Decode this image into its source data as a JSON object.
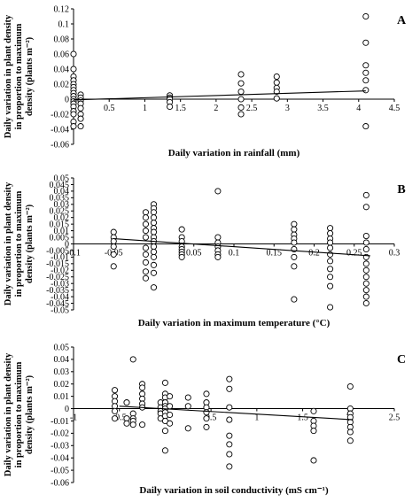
{
  "chart_data": [
    {
      "type": "scatter",
      "panel_label": "A",
      "xlabel": "Daily variation in rainfall (mm)",
      "ylabel_lines": [
        "Daily variation in plant density",
        "in proportion to maximum",
        "density (plants m⁻²)"
      ],
      "xlim": [
        0,
        4.5
      ],
      "ylim": [
        -0.06,
        0.12
      ],
      "x_ticks": [
        "0",
        "0.5",
        "1",
        "1.5",
        "2",
        "2.5",
        "3",
        "3.5",
        "4",
        "4.5"
      ],
      "y_ticks": [
        "-0.06",
        "-0.04",
        "-0.02",
        "0",
        "0.02",
        "0.04",
        "0.06",
        "0.08",
        "0.1",
        "0.12"
      ],
      "trend": {
        "x": [
          0,
          4.1
        ],
        "y": [
          -0.001,
          0.011
        ]
      },
      "points": {
        "x": [
          0,
          0,
          0,
          0,
          0,
          0,
          0,
          0,
          0,
          0,
          0,
          0,
          0,
          0,
          0,
          0,
          0,
          0.1,
          0.1,
          0.1,
          0.1,
          0.1,
          0.1,
          0.1,
          0.1,
          1.35,
          1.35,
          1.35,
          1.35,
          1.35,
          2.35,
          2.35,
          2.35,
          2.35,
          2.35,
          2.35,
          2.85,
          2.85,
          2.85,
          2.85,
          2.85,
          4.1,
          4.1,
          4.1,
          4.1,
          4.1,
          4.1,
          4.1
        ],
        "y": [
          0.06,
          0.04,
          0.03,
          0.025,
          0.02,
          0.016,
          0.012,
          0.008,
          0.004,
          0,
          -0.003,
          -0.006,
          -0.01,
          -0.016,
          -0.02,
          -0.03,
          -0.036,
          0.006,
          0.002,
          -0.002,
          -0.006,
          -0.012,
          -0.02,
          -0.026,
          -0.036,
          0.005,
          0.002,
          0,
          -0.004,
          -0.01,
          0.033,
          0.021,
          0.01,
          0,
          -0.011,
          -0.02,
          0.03,
          0.022,
          0.015,
          0.01,
          0.001,
          0.11,
          0.075,
          0.045,
          0.035,
          0.025,
          0.012,
          -0.036
        ]
      }
    },
    {
      "type": "scatter",
      "panel_label": "B",
      "xlabel": "Daily variation in maximum temperature (°C)",
      "ylabel_lines": [
        "Daily variation in plant density",
        "in proportion to maximum",
        "density (plants m⁻²)"
      ],
      "xlim": [
        -0.1,
        0.3
      ],
      "ylim": [
        -0.05,
        0.05
      ],
      "x_ticks": [
        "-0.1",
        "-0.05",
        "0",
        "0.05",
        "0.1",
        "0.15",
        "0.2",
        "0.25",
        "0.3"
      ],
      "y_ticks": [
        "-0.05",
        "-0.045",
        "-0.04",
        "-0.035",
        "-0.03",
        "-0.025",
        "-0.02",
        "-0.015",
        "-0.01",
        "-0.005",
        "0",
        "0.005",
        "0.01",
        "0.015",
        "0.02",
        "0.025",
        "0.03",
        "0.035",
        "0.04",
        "0.045",
        "0.05"
      ],
      "trend": {
        "x": [
          -0.05,
          0.27
        ],
        "y": [
          0.004,
          -0.009
        ]
      },
      "points": {
        "x": [
          -0.05,
          -0.05,
          -0.05,
          -0.05,
          -0.05,
          -0.05,
          -0.01,
          -0.01,
          -0.01,
          -0.01,
          -0.01,
          -0.01,
          -0.01,
          -0.01,
          -0.01,
          -0.01,
          0,
          0,
          0,
          0,
          0,
          0,
          0,
          0,
          0,
          0,
          0,
          0,
          0,
          0,
          0,
          0.035,
          0.035,
          0.035,
          0.035,
          0.035,
          0.035,
          0.035,
          0.035,
          0.08,
          0.08,
          0.08,
          0.08,
          0.08,
          0.08,
          0.08,
          0.175,
          0.175,
          0.175,
          0.175,
          0.175,
          0.175,
          0.175,
          0.175,
          0.175,
          0.22,
          0.22,
          0.22,
          0.22,
          0.22,
          0.22,
          0.22,
          0.22,
          0.22,
          0.22,
          0.22,
          0.265,
          0.265,
          0.265,
          0.265,
          0.265,
          0.265,
          0.265,
          0.265,
          0.265,
          0.265,
          0.265,
          0.265,
          0.265
        ],
        "y": [
          0.009,
          0.005,
          0.002,
          -0.002,
          -0.008,
          -0.017,
          0.024,
          0.02,
          0.015,
          0.01,
          0.005,
          -0.003,
          -0.008,
          -0.014,
          -0.021,
          -0.026,
          0.03,
          0.027,
          0.024,
          0.02,
          0.016,
          0.012,
          0.009,
          0.005,
          0.002,
          -0.002,
          -0.006,
          -0.01,
          -0.016,
          -0.022,
          -0.033,
          0.011,
          0.005,
          0.002,
          -0.002,
          -0.004,
          -0.006,
          -0.008,
          -0.01,
          0.04,
          0.005,
          0.001,
          -0.002,
          -0.005,
          -0.008,
          -0.01,
          0.015,
          0.011,
          0.007,
          0.004,
          0.001,
          -0.004,
          -0.01,
          -0.017,
          -0.042,
          0.012,
          0.008,
          0.004,
          0.001,
          -0.003,
          -0.008,
          -0.013,
          -0.019,
          -0.025,
          -0.032,
          -0.048,
          0.037,
          0.028,
          0.006,
          0.001,
          -0.004,
          -0.01,
          -0.015,
          -0.02,
          -0.025,
          -0.03,
          -0.035,
          -0.04,
          -0.045
        ]
      }
    },
    {
      "type": "scatter",
      "panel_label": "C",
      "xlabel": "Daily variation in soil conductivity (mS cm⁻¹)",
      "ylabel_lines": [
        "Daily variation in plant density",
        "in proportion to maximum",
        "density (plants m⁻²)"
      ],
      "xlim": [
        -1,
        2.5
      ],
      "ylim": [
        -0.06,
        0.05
      ],
      "x_ticks": [
        "-1",
        "-0.5",
        "0",
        "0.5",
        "1",
        "1.5",
        "2",
        "2.5"
      ],
      "y_ticks": [
        "-0.06",
        "-0.05",
        "-0.04",
        "-0.03",
        "-0.02",
        "-0.01",
        "0",
        "0.01",
        "0.02",
        "0.03",
        "0.04",
        "0.05"
      ],
      "trend": {
        "x": [
          -0.5,
          2.05
        ],
        "y": [
          0.002,
          -0.009
        ]
      },
      "points": {
        "x": [
          -0.55,
          -0.55,
          -0.55,
          -0.55,
          -0.55,
          -0.55,
          -0.42,
          -0.42,
          -0.42,
          -0.35,
          -0.35,
          -0.35,
          -0.35,
          -0.35,
          -0.25,
          -0.25,
          -0.25,
          -0.25,
          -0.25,
          -0.25,
          -0.25,
          -0.05,
          -0.05,
          -0.05,
          -0.05,
          -0.05,
          0,
          0,
          0,
          0,
          0,
          0,
          0,
          0,
          0,
          0,
          0,
          0.05,
          0.05,
          0.05,
          0.05,
          0.25,
          0.25,
          0.25,
          0.45,
          0.45,
          0.45,
          0.45,
          0.45,
          0.45,
          0.7,
          0.7,
          0.7,
          0.7,
          0.7,
          0.7,
          0.7,
          0.7,
          1.62,
          1.62,
          1.62,
          1.62,
          1.62,
          2.02,
          2.02,
          2.02,
          2.02,
          2.02,
          2.02,
          2.02,
          2.02
        ],
        "y": [
          0.015,
          0.01,
          0.006,
          0.002,
          -0.002,
          -0.008,
          0.005,
          -0.008,
          -0.012,
          0.04,
          -0.004,
          -0.008,
          -0.01,
          -0.013,
          0.02,
          0.017,
          0.012,
          0.008,
          0.004,
          0.001,
          -0.013,
          0.005,
          0.001,
          -0.002,
          -0.004,
          -0.008,
          0.021,
          0.012,
          0.009,
          0.005,
          0.002,
          0,
          -0.003,
          -0.006,
          -0.01,
          -0.018,
          -0.034,
          0.01,
          0.002,
          -0.005,
          -0.012,
          0.009,
          0.002,
          -0.016,
          0.012,
          0.005,
          0.001,
          -0.003,
          -0.008,
          -0.015,
          0.024,
          0.016,
          0.001,
          -0.009,
          -0.022,
          -0.029,
          -0.037,
          -0.047,
          -0.002,
          -0.01,
          -0.014,
          -0.018,
          -0.042,
          0.018,
          0,
          -0.004,
          -0.007,
          -0.011,
          -0.015,
          -0.019,
          -0.026
        ]
      }
    }
  ]
}
